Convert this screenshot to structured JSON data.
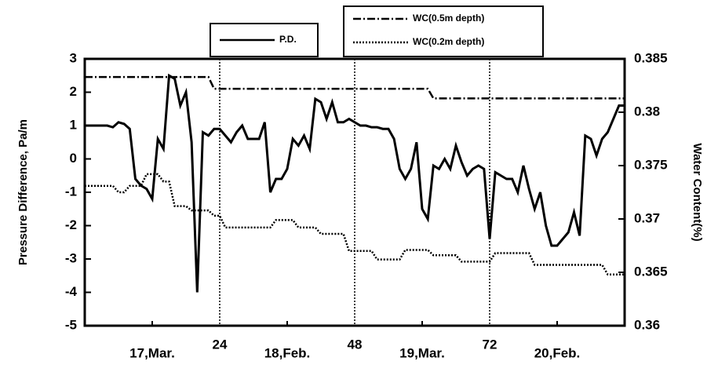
{
  "chart_data": {
    "type": "line",
    "x": [
      0,
      1,
      2,
      3,
      4,
      5,
      6,
      7,
      8,
      9,
      10,
      11,
      12,
      13,
      14,
      15,
      16,
      17,
      18,
      19,
      20,
      21,
      22,
      23,
      24,
      25,
      26,
      27,
      28,
      29,
      30,
      31,
      32,
      33,
      34,
      35,
      36,
      37,
      38,
      39,
      40,
      41,
      42,
      43,
      44,
      45,
      46,
      47,
      48,
      49,
      50,
      51,
      52,
      53,
      54,
      55,
      56,
      57,
      58,
      59,
      60,
      61,
      62,
      63,
      64,
      65,
      66,
      67,
      68,
      69,
      70,
      71,
      72,
      73,
      74,
      75,
      76,
      77,
      78,
      79,
      80,
      81,
      82,
      83,
      84,
      85,
      86,
      87,
      88,
      89,
      90,
      91,
      92,
      93,
      94,
      95,
      96
    ],
    "xlim": [
      0,
      96
    ],
    "xticks": [
      24,
      48,
      72
    ],
    "xtick_day_labels": [
      {
        "value": 12,
        "label": "17,Mar."
      },
      {
        "value": 36,
        "label": "18,Feb."
      },
      {
        "value": 60,
        "label": "19,Mar."
      },
      {
        "value": 84,
        "label": "20,Feb."
      }
    ],
    "ylabel": "Pressure Difference, Pa/m",
    "y2label": "Water Content(%)",
    "ylim": [
      -5,
      3
    ],
    "yticks": [
      -5,
      -4,
      -3,
      -2,
      -1,
      0,
      1,
      2,
      3
    ],
    "y2lim": [
      0.36,
      0.385
    ],
    "y2ticks": [
      0.36,
      0.365,
      0.37,
      0.375,
      0.38,
      0.385
    ],
    "series": [
      {
        "name": "P.D.",
        "color": "#000000",
        "dash": "solid",
        "values": [
          1.0,
          1.0,
          1.0,
          1.0,
          1.0,
          0.95,
          1.1,
          1.05,
          0.9,
          -0.6,
          -0.8,
          -0.9,
          -1.2,
          0.6,
          0.3,
          2.5,
          2.4,
          1.6,
          2.0,
          0.5,
          -4.0,
          0.8,
          0.7,
          0.9,
          0.9,
          0.7,
          0.5,
          0.8,
          1.0,
          0.6,
          0.6,
          0.6,
          1.1,
          -1.0,
          -0.6,
          -0.6,
          -0.3,
          0.6,
          0.4,
          0.7,
          0.3,
          1.8,
          1.7,
          1.2,
          1.7,
          1.1,
          1.1,
          1.2,
          1.1,
          1.0,
          1.0,
          0.95,
          0.95,
          0.9,
          0.9,
          0.6,
          -0.3,
          -0.6,
          -0.3,
          0.5,
          -1.5,
          -1.8,
          -0.2,
          -0.3,
          0.0,
          -0.3,
          0.4,
          -0.1,
          -0.5,
          -0.3,
          -0.2,
          -0.3,
          -2.4,
          -0.4,
          -0.5,
          -0.6,
          -0.6,
          -1.0,
          -0.2,
          -0.9,
          -1.5,
          -1.0,
          -2.0,
          -2.6,
          -2.6,
          -2.4,
          -2.2,
          -1.6,
          -2.3,
          0.7,
          0.6,
          0.1,
          0.6,
          0.8,
          1.2,
          1.6,
          1.6
        ]
      },
      {
        "name": "WC(0.5m  depth)",
        "color": "#000000",
        "dash": "dashdot",
        "axis": "y2",
        "values": [
          0.3833,
          0.3833,
          0.3833,
          0.3833,
          0.3833,
          0.3833,
          0.3833,
          0.3833,
          0.3833,
          0.3833,
          0.3833,
          0.3833,
          0.3833,
          0.3833,
          0.3833,
          0.3833,
          0.3833,
          0.3833,
          0.3833,
          0.3833,
          0.3833,
          0.3833,
          0.3833,
          0.3822,
          0.3822,
          0.3822,
          0.3822,
          0.3822,
          0.3822,
          0.3822,
          0.3822,
          0.3822,
          0.3822,
          0.3822,
          0.3822,
          0.3822,
          0.3822,
          0.3822,
          0.3822,
          0.3822,
          0.3822,
          0.3822,
          0.3822,
          0.3822,
          0.3822,
          0.3822,
          0.3822,
          0.3822,
          0.3822,
          0.3822,
          0.3822,
          0.3822,
          0.3822,
          0.3822,
          0.3822,
          0.3822,
          0.3822,
          0.3822,
          0.3822,
          0.3822,
          0.3822,
          0.3822,
          0.3813,
          0.3813,
          0.3813,
          0.3813,
          0.3813,
          0.3813,
          0.3813,
          0.3813,
          0.3813,
          0.3813,
          0.3813,
          0.3813,
          0.3813,
          0.3813,
          0.3813,
          0.3813,
          0.3813,
          0.3813,
          0.3813,
          0.3813,
          0.3813,
          0.3813,
          0.3813,
          0.3813,
          0.3813,
          0.3813,
          0.3813,
          0.3813,
          0.3813,
          0.3813,
          0.3813,
          0.3813,
          0.3813,
          0.3813,
          0.3813
        ]
      },
      {
        "name": "WC(0.2m  depth)",
        "color": "#000000",
        "dash": "dotted",
        "axis": "y2",
        "values": [
          0.3731,
          0.3731,
          0.3731,
          0.3731,
          0.3731,
          0.3731,
          0.3725,
          0.3725,
          0.3731,
          0.3731,
          0.3731,
          0.3742,
          0.3742,
          0.3742,
          0.3735,
          0.3735,
          0.3712,
          0.3712,
          0.3712,
          0.3708,
          0.3708,
          0.3708,
          0.3708,
          0.3703,
          0.3703,
          0.3692,
          0.3692,
          0.3692,
          0.3692,
          0.3692,
          0.3692,
          0.3692,
          0.3692,
          0.3692,
          0.3699,
          0.3699,
          0.3699,
          0.3699,
          0.3692,
          0.3692,
          0.3692,
          0.3692,
          0.3686,
          0.3686,
          0.3686,
          0.3686,
          0.3686,
          0.367,
          0.367,
          0.367,
          0.367,
          0.367,
          0.3662,
          0.3662,
          0.3662,
          0.3662,
          0.3662,
          0.3671,
          0.3671,
          0.3671,
          0.3671,
          0.3671,
          0.3666,
          0.3666,
          0.3666,
          0.3666,
          0.3666,
          0.366,
          0.366,
          0.366,
          0.366,
          0.366,
          0.366,
          0.3668,
          0.3668,
          0.3668,
          0.3668,
          0.3668,
          0.3668,
          0.3668,
          0.3657,
          0.3657,
          0.3657,
          0.3657,
          0.3657,
          0.3657,
          0.3657,
          0.3657,
          0.3657,
          0.3657,
          0.3657,
          0.3657,
          0.3657,
          0.3648,
          0.3648,
          0.3648,
          0.3648
        ]
      }
    ]
  }
}
